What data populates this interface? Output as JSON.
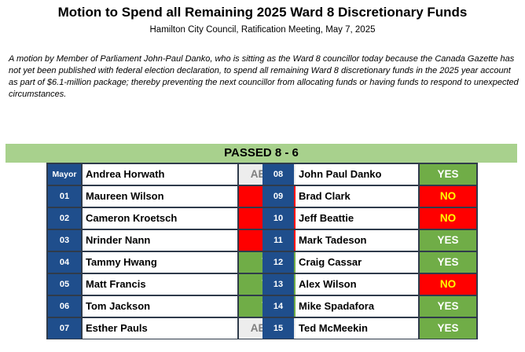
{
  "title": "Motion to Spend all Remaining 2025 Ward 8 Discretionary Funds",
  "subtitle": "Hamilton City Council, Ratification Meeting, May 7, 2025",
  "description": "A motion by Member of Parliament John-Paul Danko, who is sitting as the Ward 8 councillor today because the Canada Gazette has not yet been published with federal election declaration, to spend all remaining Ward 8 discretionary funds in the 2025 year account as part of $6.1-million package; thereby preventing the next councillor from allocating funds or having funds to respond to unexpected circumstances.",
  "result": "PASSED 8 - 6",
  "colors": {
    "yes": "#70ad47",
    "no": "#ff0000",
    "absent": "#ededed",
    "banner": "#a8d18d",
    "ward_badge": "#1f4e8c"
  },
  "left_column": [
    {
      "ward": "Mayor",
      "name": "Andrea Horwath",
      "vote": "ABSENT"
    },
    {
      "ward": "01",
      "name": "Maureen Wilson",
      "vote": "NO"
    },
    {
      "ward": "02",
      "name": "Cameron Kroetsch",
      "vote": "NO"
    },
    {
      "ward": "03",
      "name": "Nrinder Nann",
      "vote": "NO"
    },
    {
      "ward": "04",
      "name": "Tammy Hwang",
      "vote": "YES"
    },
    {
      "ward": "05",
      "name": "Matt Francis",
      "vote": "YES"
    },
    {
      "ward": "06",
      "name": "Tom Jackson",
      "vote": "YES"
    },
    {
      "ward": "07",
      "name": "Esther Pauls",
      "vote": "ABSENT"
    }
  ],
  "right_column": [
    {
      "ward": "08",
      "name": "John Paul Danko",
      "vote": "YES"
    },
    {
      "ward": "09",
      "name": "Brad Clark",
      "vote": "NO"
    },
    {
      "ward": "10",
      "name": "Jeff Beattie",
      "vote": "NO"
    },
    {
      "ward": "11",
      "name": "Mark Tadeson",
      "vote": "YES"
    },
    {
      "ward": "12",
      "name": "Craig Cassar",
      "vote": "YES"
    },
    {
      "ward": "13",
      "name": "Alex Wilson",
      "vote": "NO"
    },
    {
      "ward": "14",
      "name": "Mike Spadafora",
      "vote": "YES"
    },
    {
      "ward": "15",
      "name": "Ted McMeekin",
      "vote": "YES"
    }
  ]
}
